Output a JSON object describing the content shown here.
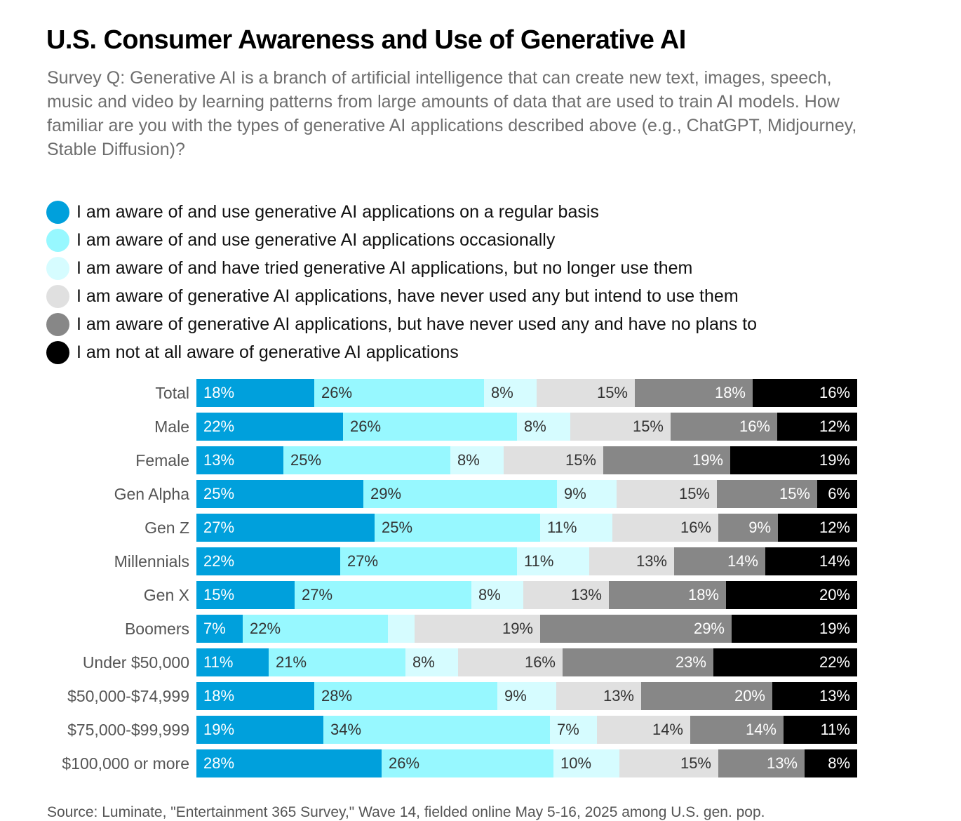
{
  "title": "U.S. Consumer Awareness and Use of Generative AI",
  "subtitle": "Survey Q: Generative AI is a branch of artificial intelligence that can create new text, images, speech, music and video by learning patterns from large amounts of data that are used to train AI models. How familiar are you with the types of generative AI applications described above (e.g., ChatGPT, Midjourney, Stable Diffusion)?",
  "source": "Source: Luminate, \"Entertainment 365 Survey,\" Wave 14, fielded online May 5-16, 2025 among U.S. gen. pop.",
  "chart_data": {
    "type": "bar",
    "orientation": "horizontal",
    "stacked": true,
    "unit": "%",
    "categories": [
      "Total",
      "Male",
      "Female",
      "Gen Alpha",
      "Gen Z",
      "Millennials",
      "Gen X",
      "Boomers",
      "Under $50,000",
      "$50,000-$74,999",
      "$75,000-$99,999",
      "$100,000 or more"
    ],
    "legend_position": "top",
    "series": [
      {
        "name": "I am aware of and use generative AI applications on a regular basis",
        "color": "#00a0dc",
        "text_color": "#ffffff",
        "label_align": "left",
        "values": [
          18,
          22,
          13,
          25,
          27,
          22,
          15,
          7,
          11,
          18,
          19,
          28
        ],
        "labels": [
          "18%",
          "22%",
          "13%",
          "25%",
          "27%",
          "22%",
          "15%",
          "7%",
          "11%",
          "18%",
          "19%",
          "28%"
        ]
      },
      {
        "name": "I am aware of and use generative AI applications occasionally",
        "color": "#97f8ff",
        "text_color": "#333333",
        "label_align": "left",
        "values": [
          26,
          26,
          25,
          29,
          25,
          27,
          27,
          22,
          21,
          28,
          34,
          26
        ],
        "labels": [
          "26%",
          "26%",
          "25%",
          "29%",
          "25%",
          "27%",
          "27%",
          "22%",
          "21%",
          "28%",
          "34%",
          "26%"
        ]
      },
      {
        "name": "I am aware of and have tried generative AI applications, but no longer use them",
        "color": "#d6fcff",
        "text_color": "#333333",
        "label_align": "left",
        "values": [
          8,
          8,
          8,
          9,
          11,
          11,
          8,
          4,
          8,
          9,
          7,
          10
        ],
        "labels": [
          "8%",
          "8%",
          "8%",
          "9%",
          "11%",
          "11%",
          "8%",
          "",
          "8%",
          "9%",
          "7%",
          "10%"
        ]
      },
      {
        "name": "I am aware of generative AI applications, have never used any but intend to use them",
        "color": "#e0e0e0",
        "text_color": "#333333",
        "label_align": "right",
        "values": [
          15,
          15,
          15,
          15,
          16,
          13,
          13,
          19,
          16,
          13,
          14,
          15
        ],
        "labels": [
          "15%",
          "15%",
          "15%",
          "15%",
          "16%",
          "13%",
          "13%",
          "19%",
          "16%",
          "13%",
          "14%",
          "15%"
        ]
      },
      {
        "name": "I am aware of generative AI applications, but have never used any and have no plans to",
        "color": "#878787",
        "text_color": "#ffffff",
        "label_align": "right",
        "values": [
          18,
          16,
          19,
          15,
          9,
          14,
          18,
          29,
          23,
          20,
          14,
          13
        ],
        "labels": [
          "18%",
          "16%",
          "19%",
          "15%",
          "9%",
          "14%",
          "18%",
          "29%",
          "23%",
          "20%",
          "14%",
          "13%"
        ]
      },
      {
        "name": "I am not at all aware of generative AI applications",
        "color": "#000000",
        "text_color": "#ffffff",
        "label_align": "right",
        "values": [
          16,
          12,
          19,
          6,
          12,
          14,
          20,
          19,
          22,
          13,
          11,
          8
        ],
        "labels": [
          "16%",
          "12%",
          "19%",
          "6%",
          "12%",
          "14%",
          "20%",
          "19%",
          "22%",
          "13%",
          "11%",
          "8%"
        ]
      }
    ]
  }
}
